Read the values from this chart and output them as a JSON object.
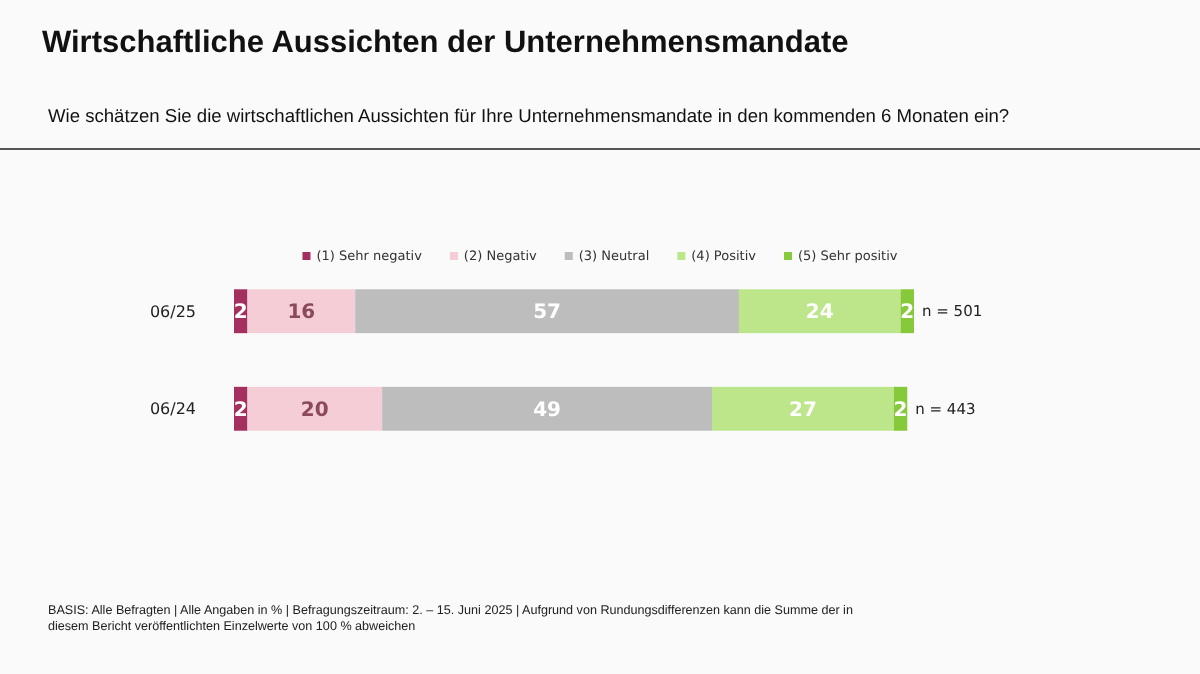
{
  "chart_data": {
    "type": "bar",
    "orientation": "horizontal",
    "stacked": true,
    "data_labels": true,
    "legend": "top",
    "title": "Wirtschaftliche Aussichten der Unternehmensmandate",
    "subtitle": "Wie schätzen Sie die wirtschaftlichen Aussichten für Ihre Unternehmensmandate in den kommenden 6 Monaten ein?",
    "categories": [
      "06/25",
      "06/24"
    ],
    "series": [
      {
        "name": "(1) Sehr negativ",
        "color": "#a3305f",
        "values": [
          2,
          2
        ]
      },
      {
        "name": "(2) Negativ",
        "color": "#f5cdd6",
        "values": [
          16,
          20
        ]
      },
      {
        "name": "(3) Neutral",
        "color": "#bdbdbd",
        "values": [
          57,
          49
        ]
      },
      {
        "name": "(4) Positiv",
        "color": "#bde58a",
        "values": [
          24,
          27
        ]
      },
      {
        "name": "(5) Sehr positiv",
        "color": "#86c93a",
        "values": [
          2,
          2
        ]
      }
    ],
    "annotations": [
      {
        "text": "n = 501",
        "x": 101,
        "y": "06/25"
      },
      {
        "text": "n = 443",
        "x": 100,
        "y": "06/24"
      },
      "BASIS: Alle Befragten | Alle Angaben in % | Befragungszeitraum: 2. – 15. Juni 2025 | Aufgrund von Rundungsdifferenzen kann die Summe der in diesem Bericht veröffentlichten Einzelwerte von 100 % abweichen"
    ]
  }
}
